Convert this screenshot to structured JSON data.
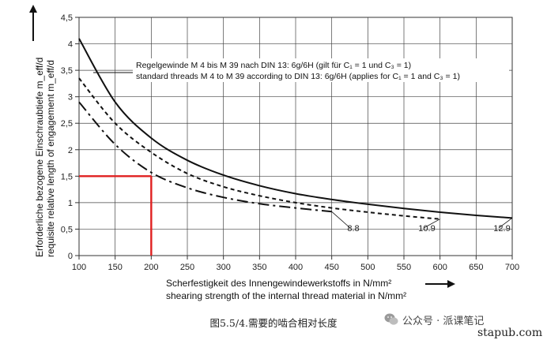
{
  "chart_data": {
    "type": "line",
    "xlabel_de": "Scherfestigkeit des Innengewindewerkstoffs in N/mm²",
    "xlabel_en": "shearing strength of the internal thread material in N/mm²",
    "ylabel_de": "Erforderliche bezogene Einschraubtiefe m_eff/d",
    "ylabel_en": "requisite relative length of engagement m_eff/d",
    "xlim": [
      100,
      700
    ],
    "ylim": [
      0,
      4.5
    ],
    "x_ticks": [
      "100",
      "150",
      "200",
      "250",
      "300",
      "350",
      "400",
      "450",
      "500",
      "550",
      "600",
      "650",
      "700"
    ],
    "y_ticks": [
      "0",
      "0,5",
      "1",
      "1,5",
      "2",
      "2,5",
      "3",
      "3,5",
      "4",
      "4,5"
    ],
    "grid": true,
    "annotation": {
      "line_de": "Regelgewinde M 4 bis M 39 nach DIN 13: 6g/6H (gilt für C₁ = 1 und C₃ = 1)",
      "line_en": "standard threads M 4 to M 39 according to DIN 13: 6g/6H (applies for C₁ = 1 and C₃ = 1)"
    },
    "series": [
      {
        "name": "8.8",
        "style": "dash-dot",
        "points": [
          [
            100,
            2.9
          ],
          [
            150,
            2.1
          ],
          [
            200,
            1.57
          ],
          [
            250,
            1.28
          ],
          [
            300,
            1.1
          ],
          [
            350,
            0.98
          ],
          [
            400,
            0.9
          ],
          [
            450,
            0.83
          ]
        ]
      },
      {
        "name": "10.9",
        "style": "dashed",
        "points": [
          [
            100,
            3.35
          ],
          [
            150,
            2.5
          ],
          [
            200,
            1.95
          ],
          [
            250,
            1.55
          ],
          [
            300,
            1.3
          ],
          [
            350,
            1.13
          ],
          [
            400,
            1.0
          ],
          [
            450,
            0.9
          ],
          [
            500,
            0.82
          ],
          [
            550,
            0.75
          ],
          [
            600,
            0.69
          ]
        ]
      },
      {
        "name": "12.9",
        "style": "solid",
        "points": [
          [
            100,
            4.1
          ],
          [
            150,
            2.9
          ],
          [
            200,
            2.22
          ],
          [
            250,
            1.8
          ],
          [
            300,
            1.52
          ],
          [
            350,
            1.32
          ],
          [
            400,
            1.17
          ],
          [
            450,
            1.06
          ],
          [
            500,
            0.97
          ],
          [
            550,
            0.89
          ],
          [
            600,
            0.82
          ],
          [
            650,
            0.76
          ],
          [
            700,
            0.71
          ]
        ]
      }
    ],
    "highlight": {
      "x": 200,
      "y": 1.5,
      "color": "#e02020"
    }
  },
  "caption": "图5.5/4.需要的啮合相对长度",
  "watermark": {
    "icon": "wechat-icon",
    "text": "公众号 · 派课笔记",
    "site": "stapub.com"
  }
}
